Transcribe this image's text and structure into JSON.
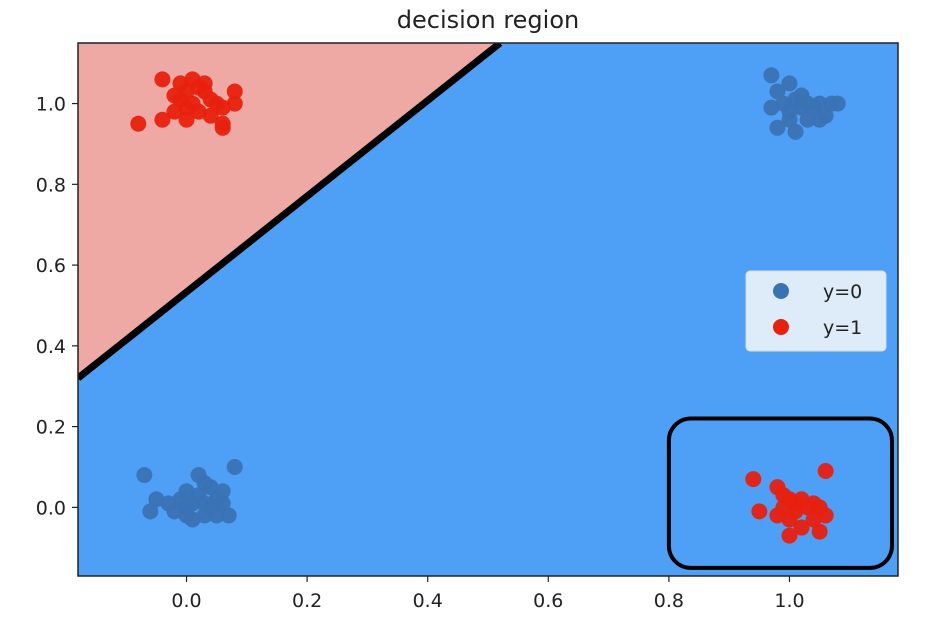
{
  "chart_data": {
    "type": "scatter",
    "title": "decision region",
    "xlabel": "",
    "ylabel": "",
    "xlim": [
      -0.18,
      1.18
    ],
    "ylim": [
      -0.17,
      1.15
    ],
    "xticks": [
      0.0,
      0.2,
      0.4,
      0.6,
      0.8,
      1.0
    ],
    "xtick_labels": [
      "0.0",
      "0.2",
      "0.4",
      "0.6",
      "0.8",
      "1.0"
    ],
    "yticks": [
      0.0,
      0.2,
      0.4,
      0.6,
      0.8,
      1.0
    ],
    "ytick_labels": [
      "0.0",
      "0.2",
      "0.4",
      "0.6",
      "0.8",
      "1.0"
    ],
    "grid": false,
    "legend_position": "right",
    "colors": {
      "region_y0": "#4da0f5",
      "region_y1": "#eea9a4",
      "point_y0": "#3a73b4",
      "point_y1": "#e8200e",
      "boundary": "#000000"
    },
    "decision_boundary": {
      "x": [
        -0.18,
        0.52
      ],
      "y": [
        0.32,
        1.15
      ]
    },
    "highlight_box": {
      "x": [
        0.8,
        1.17
      ],
      "y": [
        -0.15,
        0.22
      ]
    },
    "series": [
      {
        "name": "y=0",
        "points": [
          [
            -0.07,
            0.08
          ],
          [
            -0.05,
            0.02
          ],
          [
            -0.06,
            -0.01
          ],
          [
            -0.03,
            0.01
          ],
          [
            -0.01,
            0.02
          ],
          [
            0.0,
            0.0
          ],
          [
            0.01,
            0.01
          ],
          [
            0.02,
            0.03
          ],
          [
            0.03,
            0.01
          ],
          [
            0.04,
            0.0
          ],
          [
            0.05,
            0.02
          ],
          [
            0.06,
            0.04
          ],
          [
            0.02,
            0.08
          ],
          [
            0.0,
            -0.02
          ],
          [
            0.01,
            -0.03
          ],
          [
            0.03,
            -0.02
          ],
          [
            0.05,
            -0.02
          ],
          [
            0.07,
            -0.02
          ],
          [
            -0.02,
            -0.01
          ],
          [
            0.08,
            0.1
          ],
          [
            0.04,
            0.05
          ],
          [
            0.0,
            0.04
          ],
          [
            0.03,
            0.06
          ],
          [
            0.06,
            0.01
          ],
          [
            0.97,
            1.07
          ],
          [
            0.98,
            1.03
          ],
          [
            1.0,
            1.05
          ],
          [
            0.99,
            1.0
          ],
          [
            1.01,
            1.01
          ],
          [
            1.02,
            0.99
          ],
          [
            1.03,
            1.0
          ],
          [
            1.04,
            0.99
          ],
          [
            1.05,
            1.0
          ],
          [
            1.07,
            1.0
          ],
          [
            1.08,
            1.0
          ],
          [
            1.0,
            0.96
          ],
          [
            0.98,
            0.94
          ],
          [
            1.01,
            0.93
          ],
          [
            1.03,
            0.96
          ],
          [
            1.05,
            0.96
          ],
          [
            0.97,
            0.99
          ],
          [
            1.02,
            1.02
          ],
          [
            1.06,
            0.97
          ],
          [
            1.0,
            0.98
          ]
        ]
      },
      {
        "name": "y=1",
        "points": [
          [
            -0.08,
            0.95
          ],
          [
            -0.04,
            1.06
          ],
          [
            -0.01,
            1.05
          ],
          [
            0.0,
            1.03
          ],
          [
            0.01,
            1.06
          ],
          [
            0.02,
            1.04
          ],
          [
            0.03,
            1.03
          ],
          [
            0.04,
            1.01
          ],
          [
            0.05,
            1.0
          ],
          [
            0.0,
            0.99
          ],
          [
            -0.01,
            1.01
          ],
          [
            -0.02,
            0.98
          ],
          [
            0.02,
            0.98
          ],
          [
            0.04,
            0.97
          ],
          [
            0.06,
            0.95
          ],
          [
            0.06,
            0.94
          ],
          [
            -0.04,
            0.96
          ],
          [
            0.08,
            1.03
          ],
          [
            0.08,
            1.0
          ],
          [
            0.01,
            1.0
          ],
          [
            -0.02,
            1.02
          ],
          [
            0.03,
            1.05
          ],
          [
            0.0,
            0.96
          ],
          [
            0.06,
            0.99
          ],
          [
            0.94,
            0.07
          ],
          [
            0.95,
            -0.01
          ],
          [
            0.98,
            0.05
          ],
          [
            0.99,
            0.03
          ],
          [
            1.0,
            0.02
          ],
          [
            1.01,
            0.01
          ],
          [
            1.02,
            0.02
          ],
          [
            1.03,
            0.0
          ],
          [
            1.04,
            0.01
          ],
          [
            1.05,
            0.0
          ],
          [
            1.06,
            -0.02
          ],
          [
            1.06,
            0.09
          ],
          [
            0.98,
            -0.02
          ],
          [
            1.0,
            -0.03
          ],
          [
            1.02,
            -0.05
          ],
          [
            1.04,
            -0.03
          ],
          [
            1.05,
            -0.06
          ],
          [
            1.0,
            -0.07
          ],
          [
            0.99,
            0.0
          ],
          [
            1.01,
            -0.01
          ]
        ]
      }
    ]
  }
}
